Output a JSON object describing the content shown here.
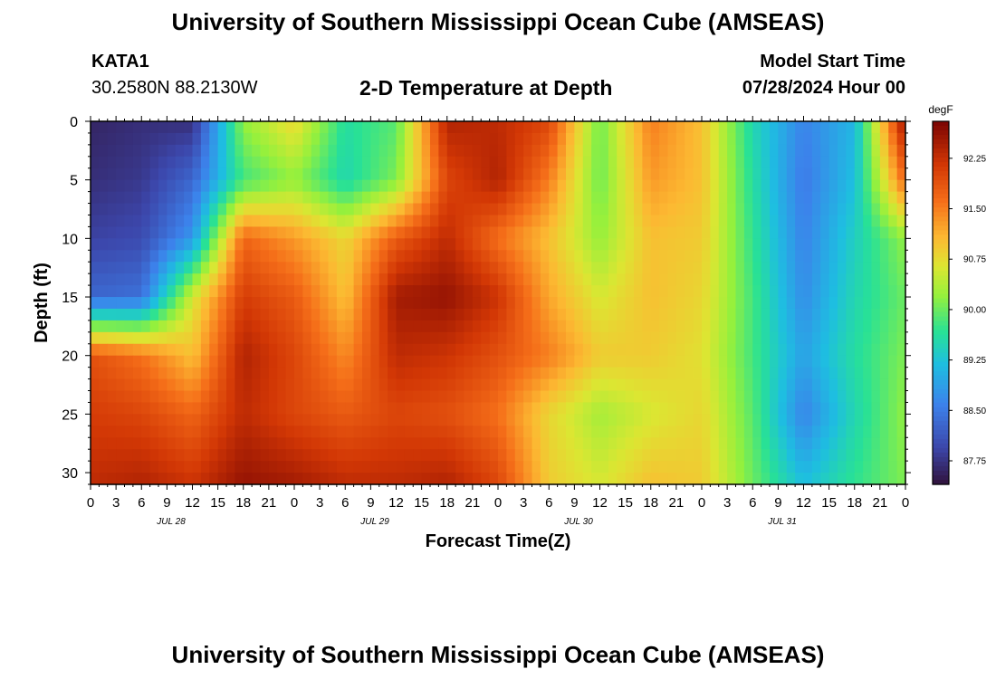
{
  "header": {
    "title": "University of Southern Mississippi Ocean Cube (AMSEAS)",
    "station": "KATA1",
    "coords": "30.2580N  88.2130W",
    "subtitle": "2-D Temperature at Depth",
    "start_label": "Model Start Time",
    "start_date": "07/28/2024 Hour 00"
  },
  "footer": {
    "title": "University of Southern Mississippi Ocean Cube (AMSEAS)"
  },
  "chart_data": {
    "type": "heatmap",
    "title": "2-D Temperature at Depth",
    "xlabel": "Forecast Time(Z)",
    "ylabel": "Depth (ft)",
    "xlim": [
      0,
      96
    ],
    "ylim": [
      31,
      0
    ],
    "x_tick_labels": [
      "0",
      "3",
      "6",
      "9",
      "12",
      "15",
      "18",
      "21",
      "0",
      "3",
      "6",
      "9",
      "12",
      "15",
      "18",
      "21",
      "0",
      "3",
      "6",
      "9",
      "12",
      "15",
      "18",
      "21",
      "0",
      "3",
      "6",
      "9",
      "12",
      "15",
      "18",
      "21",
      "0"
    ],
    "date_labels": [
      {
        "label": "JUL 28",
        "hour": 9.5
      },
      {
        "label": "JUL 29",
        "hour": 33.5
      },
      {
        "label": "JUL 30",
        "hour": 57.5
      },
      {
        "label": "JUL 31",
        "hour": 81.5
      }
    ],
    "y_ticks": [
      0,
      5,
      10,
      15,
      20,
      25,
      30
    ],
    "colorbar": {
      "units": "degF",
      "min": 87.4,
      "max": 92.8,
      "ticks": [
        "87.75",
        "88.50",
        "89.25",
        "90.00",
        "90.75",
        "91.50",
        "92.25"
      ]
    },
    "depths": [
      0,
      5,
      10,
      15,
      20,
      25,
      31
    ],
    "hours": [
      0,
      6,
      12,
      18,
      24,
      30,
      36,
      42,
      48,
      54,
      60,
      66,
      72,
      78,
      84,
      90,
      96
    ],
    "values": [
      [
        87.6,
        87.7,
        87.7,
        90.2,
        90.8,
        89.6,
        89.9,
        92.4,
        92.3,
        92.0,
        90.0,
        91.5,
        91.0,
        89.5,
        88.6,
        89.1,
        92.6
      ],
      [
        87.7,
        87.8,
        88.3,
        89.8,
        90.2,
        89.5,
        90.1,
        92.0,
        92.4,
        91.5,
        90.0,
        91.3,
        91.0,
        89.6,
        88.5,
        89.2,
        91.7
      ],
      [
        87.9,
        88.0,
        88.8,
        91.7,
        91.3,
        90.8,
        91.8,
        92.3,
        91.6,
        91.0,
        90.2,
        91.0,
        90.9,
        89.7,
        88.6,
        89.4,
        90.2
      ],
      [
        88.3,
        88.4,
        90.6,
        92.1,
        91.8,
        91.0,
        92.5,
        92.6,
        92.2,
        91.2,
        90.6,
        91.0,
        90.8,
        89.8,
        88.7,
        89.5,
        90.0
      ],
      [
        91.9,
        91.6,
        91.0,
        92.4,
        92.0,
        91.4,
        92.3,
        92.2,
        91.9,
        91.5,
        90.9,
        90.9,
        90.7,
        89.8,
        88.9,
        89.6,
        90.1
      ],
      [
        92.1,
        92.0,
        91.7,
        92.3,
        92.0,
        91.8,
        92.0,
        91.9,
        91.6,
        90.8,
        90.3,
        90.6,
        90.8,
        89.9,
        88.6,
        89.5,
        90.2
      ],
      [
        92.3,
        92.4,
        92.2,
        92.6,
        92.5,
        92.3,
        92.3,
        92.4,
        92.0,
        90.9,
        90.6,
        91.0,
        90.9,
        90.0,
        89.2,
        89.7,
        90.1
      ]
    ]
  }
}
